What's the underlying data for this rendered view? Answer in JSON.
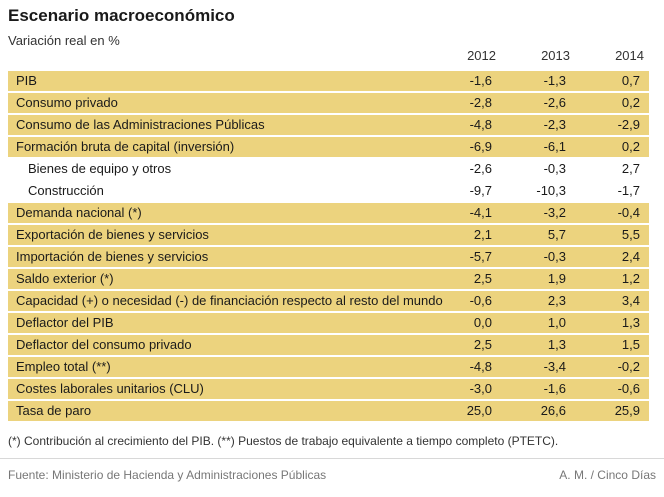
{
  "chart_data": {
    "type": "table",
    "title": "Escenario macroeconómico",
    "subtitle": "Variación real en %",
    "columns": [
      "2012",
      "2013",
      "2014"
    ],
    "rows": [
      {
        "label": "PIB",
        "values": [
          "-1,6",
          "-1,3",
          "0,7"
        ],
        "highlight": true,
        "indent": false
      },
      {
        "label": "Consumo privado",
        "values": [
          "-2,8",
          "-2,6",
          "0,2"
        ],
        "highlight": true,
        "indent": false
      },
      {
        "label": "Consumo de las Administraciones Públicas",
        "values": [
          "-4,8",
          "-2,3",
          "-2,9"
        ],
        "highlight": true,
        "indent": false
      },
      {
        "label": "Formación bruta de capital (inversión)",
        "values": [
          "-6,9",
          "-6,1",
          "0,2"
        ],
        "highlight": true,
        "indent": false
      },
      {
        "label": "Bienes de equipo y otros",
        "values": [
          "-2,6",
          "-0,3",
          "2,7"
        ],
        "highlight": false,
        "indent": true
      },
      {
        "label": "Construcción",
        "values": [
          "-9,7",
          "-10,3",
          "-1,7"
        ],
        "highlight": false,
        "indent": true
      },
      {
        "label": "Demanda nacional (*)",
        "values": [
          "-4,1",
          "-3,2",
          "-0,4"
        ],
        "highlight": true,
        "indent": false
      },
      {
        "label": "Exportación de bienes y servicios",
        "values": [
          "2,1",
          "5,7",
          "5,5"
        ],
        "highlight": true,
        "indent": false
      },
      {
        "label": "Importación de bienes y servicios",
        "values": [
          "-5,7",
          "-0,3",
          "2,4"
        ],
        "highlight": true,
        "indent": false
      },
      {
        "label": "Saldo exterior (*)",
        "values": [
          "2,5",
          "1,9",
          "1,2"
        ],
        "highlight": true,
        "indent": false
      },
      {
        "label": "Capacidad (+) o necesidad (-) de financiación respecto al resto del mundo",
        "values": [
          "-0,6",
          "2,3",
          "3,4"
        ],
        "highlight": true,
        "indent": false
      },
      {
        "label": "Deflactor del PIB",
        "values": [
          "0,0",
          "1,0",
          "1,3"
        ],
        "highlight": true,
        "indent": false
      },
      {
        "label": "Deflactor del consumo privado",
        "values": [
          "2,5",
          "1,3",
          "1,5"
        ],
        "highlight": true,
        "indent": false
      },
      {
        "label": "Empleo total (**)",
        "values": [
          "-4,8",
          "-3,4",
          "-0,2"
        ],
        "highlight": true,
        "indent": false
      },
      {
        "label": "Costes laborales unitarios (CLU)",
        "values": [
          "-3,0",
          "-1,6",
          "-0,6"
        ],
        "highlight": true,
        "indent": false
      },
      {
        "label": "Tasa de paro",
        "values": [
          "25,0",
          "26,6",
          "25,9"
        ],
        "highlight": true,
        "indent": false
      }
    ],
    "note": "(*) Contribución al crecimiento del PIB. (**) Puestos de trabajo equivalente a tiempo completo (PTETC).",
    "source": "Fuente: Ministerio de Hacienda y Administraciones Públicas",
    "credit": "A. M. / Cinco Días",
    "highlight_color": "#ecd37e"
  }
}
